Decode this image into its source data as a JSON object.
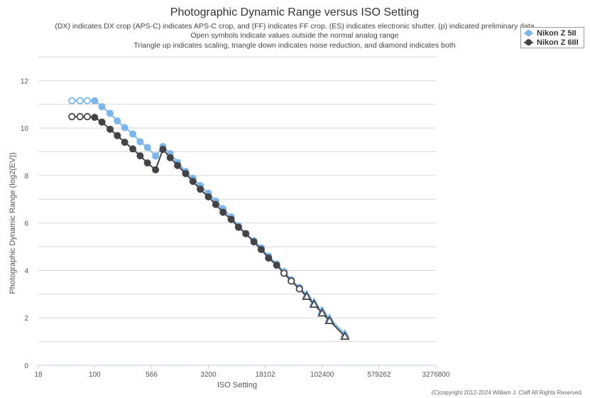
{
  "chart_data": {
    "type": "line",
    "title": "Photographic Dynamic Range versus ISO Setting",
    "subtitle": [
      "(DX) indicates DX crop (APS-C) indicates APS-C crop, and (FF) indicates FF crop. (ES) indicates electronic shutter. (p) indicated preliminary data",
      "Open symbols indicate values outside the normal analog range",
      "Triangle up indicates scaling, triangle down indicates noise reduction, and diamond indicates both"
    ],
    "xlabel": "ISO Setting",
    "ylabel": "Photographic Dynamic Range (log2(EV))",
    "x_scale": "log",
    "xlim": [
      18,
      3276800
    ],
    "ylim": [
      0,
      13
    ],
    "x_ticks": [
      18,
      100,
      566,
      3200,
      18102,
      102400,
      579262,
      3276800
    ],
    "x_tick_labels": [
      "18",
      "100",
      "566",
      "3200",
      "18102",
      "102400",
      "579262",
      "3276800"
    ],
    "y_ticks": [
      0,
      2,
      4,
      6,
      8,
      10,
      12
    ],
    "y_tick_labels": [
      "0",
      "2",
      "4",
      "6",
      "8",
      "10",
      "12"
    ],
    "grid": true,
    "legend_position": "top-right",
    "copyright": "(C)copyright 2012-2024 William J. Claff All Rights Reserved.",
    "series": [
      {
        "name": "Nikon Z 5II",
        "color": "#7cb5ec",
        "points": [
          [
            50,
            11.15,
            "open-circle"
          ],
          [
            64,
            11.15,
            "open-circle"
          ],
          [
            80,
            11.15,
            "open-circle"
          ],
          [
            100,
            11.15,
            "circle"
          ],
          [
            125,
            10.9,
            "circle"
          ],
          [
            160,
            10.62,
            "circle"
          ],
          [
            200,
            10.3,
            "circle"
          ],
          [
            250,
            10.02,
            "circle"
          ],
          [
            320,
            9.75,
            "circle"
          ],
          [
            400,
            9.42,
            "circle"
          ],
          [
            500,
            9.18,
            "circle"
          ],
          [
            640,
            8.82,
            "circle"
          ],
          [
            800,
            9.22,
            "circle"
          ],
          [
            1000,
            8.92,
            "circle"
          ],
          [
            1250,
            8.55,
            "circle"
          ],
          [
            1600,
            8.17,
            "circle"
          ],
          [
            2000,
            7.88,
            "circle"
          ],
          [
            2500,
            7.57,
            "circle"
          ],
          [
            3200,
            7.25,
            "circle"
          ],
          [
            4000,
            6.92,
            "circle"
          ],
          [
            5000,
            6.6,
            "circle"
          ],
          [
            6400,
            6.25,
            "circle"
          ],
          [
            8000,
            5.88,
            "circle"
          ],
          [
            10000,
            5.55,
            "circle"
          ],
          [
            12800,
            5.25,
            "circle"
          ],
          [
            16000,
            4.95,
            "circle"
          ],
          [
            20000,
            4.6,
            "circle"
          ],
          [
            25600,
            4.27,
            "circle"
          ],
          [
            32000,
            3.95,
            "open-circle"
          ],
          [
            40000,
            3.6,
            "open-circle"
          ],
          [
            51200,
            3.28,
            "open-circle"
          ],
          [
            64000,
            2.98,
            "triangle-up"
          ],
          [
            80000,
            2.65,
            "triangle-up"
          ],
          [
            102400,
            2.3,
            "triangle-up"
          ],
          [
            128000,
            1.98,
            "triangle-up"
          ],
          [
            204800,
            1.32,
            "triangle-up"
          ]
        ]
      },
      {
        "name": "Nikon Z 6III",
        "color": "#434348",
        "points": [
          [
            50,
            10.48,
            "open-circle"
          ],
          [
            64,
            10.48,
            "open-circle"
          ],
          [
            80,
            10.48,
            "open-circle"
          ],
          [
            100,
            10.45,
            "circle"
          ],
          [
            125,
            10.25,
            "circle"
          ],
          [
            160,
            9.95,
            "circle"
          ],
          [
            200,
            9.68,
            "circle"
          ],
          [
            250,
            9.4,
            "circle"
          ],
          [
            320,
            9.12,
            "circle"
          ],
          [
            400,
            8.83,
            "circle"
          ],
          [
            500,
            8.53,
            "circle"
          ],
          [
            640,
            8.24,
            "circle"
          ],
          [
            800,
            9.1,
            "circle"
          ],
          [
            1000,
            8.75,
            "circle"
          ],
          [
            1250,
            8.42,
            "circle"
          ],
          [
            1600,
            8.08,
            "circle"
          ],
          [
            2000,
            7.75,
            "circle"
          ],
          [
            2500,
            7.42,
            "circle"
          ],
          [
            3200,
            7.1,
            "circle"
          ],
          [
            4000,
            6.78,
            "circle"
          ],
          [
            5000,
            6.45,
            "circle"
          ],
          [
            6400,
            6.15,
            "circle"
          ],
          [
            8000,
            5.82,
            "circle"
          ],
          [
            10000,
            5.55,
            "circle"
          ],
          [
            12800,
            5.2,
            "circle"
          ],
          [
            16000,
            4.88,
            "circle"
          ],
          [
            20000,
            4.52,
            "circle"
          ],
          [
            25600,
            4.22,
            "circle"
          ],
          [
            32000,
            3.88,
            "open-circle"
          ],
          [
            40000,
            3.55,
            "open-circle"
          ],
          [
            51200,
            3.22,
            "open-circle"
          ],
          [
            64000,
            2.9,
            "open-triangle-up"
          ],
          [
            80000,
            2.57,
            "open-triangle-up"
          ],
          [
            102400,
            2.2,
            "open-triangle-up"
          ],
          [
            128000,
            1.88,
            "open-triangle-up"
          ],
          [
            204800,
            1.22,
            "open-triangle-up"
          ]
        ]
      }
    ]
  }
}
